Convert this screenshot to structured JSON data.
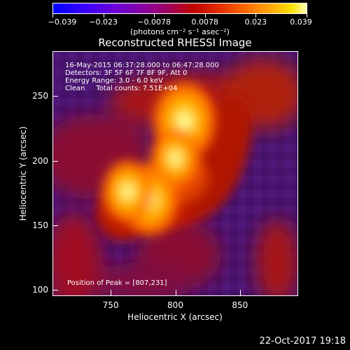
{
  "colorbar": {
    "ticks": [
      "−0.039",
      "−0.023",
      "−0.0078",
      "0.0078",
      "0.023",
      "0.039"
    ],
    "units": "(photons cm⁻² s⁻¹ asec⁻²)"
  },
  "plot": {
    "title": "Reconstructed RHESSI Image",
    "info_lines": [
      "16-May-2015 06:37:28.000 to 06:47:28.000",
      "Detectors: 3F 5F 6F 7F 8F 9F, Att 0",
      "Energy Range: 3.0 - 6.0 keV",
      "Clean     Total counts: 7.51E+04"
    ],
    "peak_text": "Position of Peak = [807,231]"
  },
  "chart_data": {
    "type": "heatmap",
    "title": "Reconstructed RHESSI Image",
    "xlabel": "Heliocentric X (arcsec)",
    "ylabel": "Heliocentric Y (arcsec)",
    "xlim": [
      705,
      895
    ],
    "ylim": [
      95,
      285
    ],
    "x_ticks": [
      750,
      800,
      850
    ],
    "y_ticks": [
      100,
      150,
      200,
      250
    ],
    "color_range": [
      -0.039,
      0.039
    ],
    "peak": [
      807,
      231
    ],
    "sources": [
      {
        "x": 807,
        "y": 231,
        "intensity": 1.0
      },
      {
        "x": 780,
        "y": 170,
        "intensity": 0.9
      },
      {
        "x": 763,
        "y": 176,
        "intensity": 0.75
      },
      {
        "x": 800,
        "y": 202,
        "intensity": 0.7
      }
    ]
  },
  "footer": {
    "timestamp": "22-Oct-2017 19:18"
  }
}
